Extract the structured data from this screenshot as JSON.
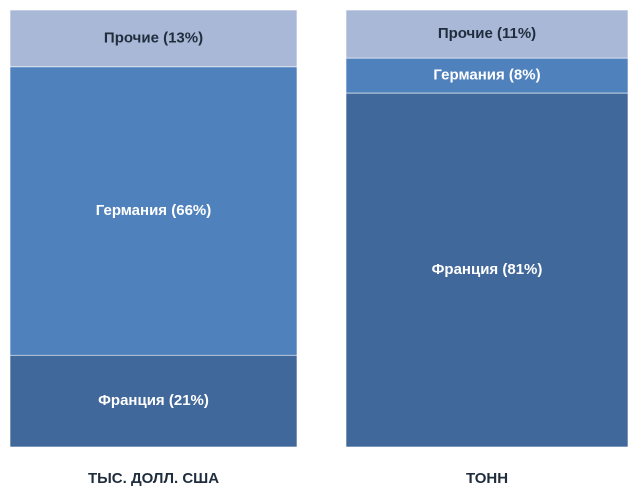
{
  "chart_data": {
    "type": "stacked_bar",
    "categories": [
      "ТЫС. ДОЛЛ. США",
      "ТОНН"
    ],
    "series": [
      {
        "color": "#41689a",
        "values": [
          21,
          81
        ],
        "value_labels": [
          "Франция (21%)",
          "Франция (81%)"
        ]
      },
      {
        "color": "#4f81bd",
        "values": [
          66,
          8
        ],
        "value_labels": [
          "Германия (66%)",
          "Германия (8%)"
        ]
      },
      {
        "color": "#a9b8d6",
        "values": [
          13,
          11
        ],
        "value_labels": [
          "Прочие (13%)",
          "Прочие (11%)"
        ]
      }
    ],
    "ylim": [
      0,
      100
    ]
  }
}
